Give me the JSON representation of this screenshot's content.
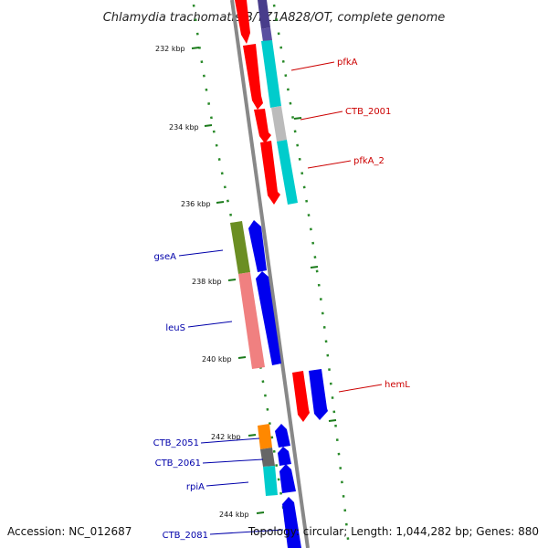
{
  "header": {
    "title": "Chlamydia trachomatis B/TZ1A828/OT, complete genome"
  },
  "footer": {
    "accession": "Accession: NC_012687",
    "summary": "Topology: circular; Length: 1,044,282 bp; Genes: 880"
  },
  "ticks": [
    {
      "label": "232 kbp"
    },
    {
      "label": "234 kbp"
    },
    {
      "label": "236 kbp"
    },
    {
      "label": "238 kbp"
    },
    {
      "label": "240 kbp"
    },
    {
      "label": "242 kbp"
    },
    {
      "label": "244 kbp"
    }
  ],
  "genes": [
    {
      "label": "pfkA",
      "strand": "forward",
      "color": "#cc0000"
    },
    {
      "label": "CTB_2001",
      "strand": "forward",
      "color": "#cc0000"
    },
    {
      "label": "pfkA_2",
      "strand": "forward",
      "color": "#cc0000"
    },
    {
      "label": "gseA",
      "strand": "reverse",
      "color": "#0000aa"
    },
    {
      "label": "leuS",
      "strand": "reverse",
      "color": "#0000aa"
    },
    {
      "label": "hemL",
      "strand": "forward",
      "color": "#cc0000"
    },
    {
      "label": "CTB_2051",
      "strand": "reverse",
      "color": "#0000aa"
    },
    {
      "label": "CTB_2061",
      "strand": "reverse",
      "color": "#0000aa"
    },
    {
      "label": "rpiA",
      "strand": "reverse",
      "color": "#0000aa"
    },
    {
      "label": "CTB_2081",
      "strand": "reverse",
      "color": "#0000aa"
    }
  ],
  "colors": {
    "backbone": "#888888",
    "tick_marks": "#2a8a2a",
    "forward_arrow": "#ff0000",
    "reverse_arrow": "#0000ee",
    "cog_cyan": "#00cccc",
    "cog_gray": "#bbbbbb",
    "cog_olive": "#6b8e23",
    "cog_salmon": "#f08080",
    "cog_orange": "#ff8800",
    "cog_darkgray": "#666666",
    "cog_slate": "#483d8b"
  }
}
